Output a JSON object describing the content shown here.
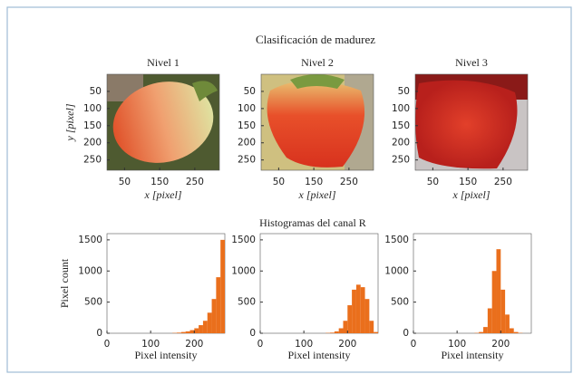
{
  "title": "Clasificación de madurez",
  "images": {
    "xlim": [
      0,
      320
    ],
    "ylim": [
      0,
      280
    ],
    "xticks": [
      50,
      150,
      250
    ],
    "yticks": [
      50,
      100,
      150,
      200,
      250
    ],
    "xlabel": "x [pixel]",
    "ylabel": "y [pixel]",
    "panels": [
      {
        "title": "Nivel 1"
      },
      {
        "title": "Nivel 2"
      },
      {
        "title": "Nivel 3"
      }
    ]
  },
  "histogram_title": "Histogramas del canal R",
  "chart_data": [
    {
      "type": "histogram",
      "ylabel": "Pixel count",
      "xlabel": "Pixel intensity",
      "color": "#ea6f1c",
      "bins": [
        0,
        10,
        20,
        30,
        40,
        50,
        60,
        70,
        80,
        90,
        100,
        110,
        120,
        130,
        140,
        150,
        160,
        170,
        180,
        190,
        200,
        210,
        220,
        230,
        240,
        250,
        260,
        270
      ],
      "values": [
        0,
        0,
        0,
        0,
        0,
        0,
        0,
        0,
        0,
        0,
        0,
        0,
        0,
        0,
        0,
        5,
        10,
        20,
        30,
        50,
        80,
        130,
        200,
        330,
        550,
        900,
        1500
      ],
      "xlim": [
        0,
        270
      ],
      "ylim": [
        0,
        1600
      ],
      "xticks": [
        0,
        100,
        200
      ],
      "yticks": [
        0,
        500,
        1000,
        1500
      ]
    },
    {
      "type": "histogram",
      "xlabel": "Pixel intensity",
      "color": "#ea6f1c",
      "bins": [
        0,
        10,
        20,
        30,
        40,
        50,
        60,
        70,
        80,
        90,
        100,
        110,
        120,
        130,
        140,
        150,
        160,
        170,
        180,
        190,
        200,
        210,
        220,
        230,
        240,
        250,
        260,
        270
      ],
      "values": [
        0,
        0,
        0,
        0,
        0,
        0,
        0,
        0,
        0,
        0,
        0,
        0,
        0,
        0,
        0,
        5,
        10,
        30,
        80,
        200,
        450,
        700,
        780,
        740,
        550,
        200,
        20
      ],
      "xlim": [
        0,
        270
      ],
      "ylim": [
        0,
        1600
      ],
      "xticks": [
        0,
        100,
        200
      ],
      "yticks": [
        0,
        500,
        1000,
        1500
      ]
    },
    {
      "type": "histogram",
      "xlabel": "Pixel intensity",
      "color": "#ea6f1c",
      "bins": [
        0,
        10,
        20,
        30,
        40,
        50,
        60,
        70,
        80,
        90,
        100,
        110,
        120,
        130,
        140,
        150,
        160,
        170,
        180,
        190,
        200,
        210,
        220,
        230,
        240,
        250,
        260,
        270
      ],
      "values": [
        0,
        0,
        0,
        0,
        0,
        0,
        0,
        0,
        0,
        0,
        0,
        0,
        0,
        0,
        5,
        20,
        100,
        400,
        1000,
        1350,
        700,
        300,
        80,
        20,
        5,
        0,
        0
      ],
      "xlim": [
        0,
        270
      ],
      "ylim": [
        0,
        1600
      ],
      "xticks": [
        0,
        100,
        200
      ],
      "yticks": [
        0,
        500,
        1000,
        1500
      ]
    }
  ]
}
